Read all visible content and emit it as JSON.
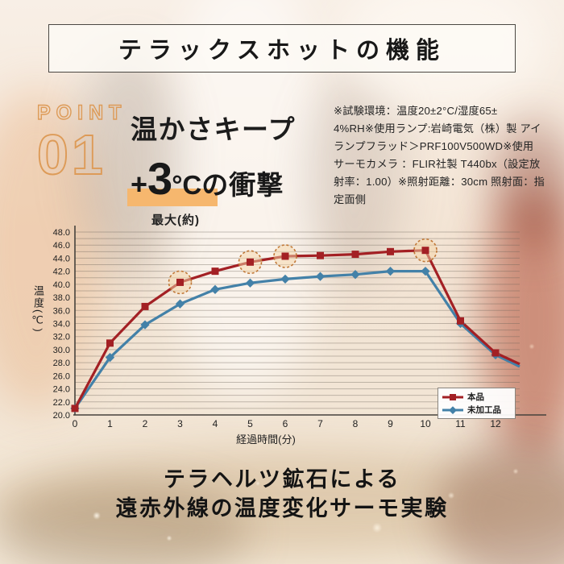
{
  "header": {
    "title": "テラックスホットの機能"
  },
  "point": {
    "label": "POINT",
    "number": "01",
    "accent_color": "#dd9b58"
  },
  "heading": {
    "line1": "温かさキープ",
    "plus": "+",
    "big": "3",
    "unit": "°C",
    "rest": "の衝撃",
    "subnote": "最大(約)",
    "highlight_color": "#f6b76e"
  },
  "test_conditions": {
    "text": "※試験環境：温度20±2°C/湿度65±\n4%RH※使用ランプ:岩崎電気（株）製 アイ\nランプフラッド＞PRF100V500WD※使用\nサーモカメラ ：FLIR社製  T440bx（設定放\n射率：1.00）※照射距離：30cm  照射面：指\n定面側"
  },
  "chart_data": {
    "type": "line",
    "title": "",
    "xlabel": "経過時間(分)",
    "ylabel": "温度(℃)",
    "x": [
      0,
      1,
      2,
      3,
      4,
      5,
      6,
      7,
      8,
      9,
      10,
      11,
      12
    ],
    "x_ticks": [
      "0",
      "1",
      "2",
      "3",
      "4",
      "5",
      "6",
      "7",
      "8",
      "9",
      "10",
      "11",
      "12"
    ],
    "y_ticks": [
      "48.0",
      "46.0",
      "44.0",
      "42.0",
      "40.0",
      "38.0",
      "36.0",
      "34.0",
      "32.0",
      "30.0",
      "28.0",
      "26.0",
      "24.0",
      "22.0",
      "20.0"
    ],
    "ylim": [
      20,
      48
    ],
    "grid_step": 1.0,
    "grid": true,
    "legend_position": "bottom-right",
    "series": [
      {
        "name": "本品",
        "color": "#a32024",
        "marker": "square",
        "values": [
          21.0,
          31.0,
          36.6,
          40.3,
          42.0,
          43.4,
          44.3,
          44.4,
          44.6,
          45.0,
          45.2,
          34.4,
          29.5
        ],
        "edge_extension_value": 27.8
      },
      {
        "name": "未加工品",
        "color": "#4381a8",
        "marker": "diamond",
        "values": [
          21.0,
          28.8,
          33.8,
          37.0,
          39.2,
          40.2,
          40.8,
          41.2,
          41.5,
          42.0,
          42.0,
          34.0,
          29.2
        ],
        "edge_extension_value": 27.4
      }
    ],
    "highlight_circles": {
      "series": "本品",
      "x": [
        3,
        5,
        6,
        10
      ],
      "stroke": "#c07736",
      "fill": "#f6d5a8"
    }
  },
  "caption": {
    "text": "テラヘルツ鉱石による\n遠赤外線の温度変化サーモ実験"
  }
}
